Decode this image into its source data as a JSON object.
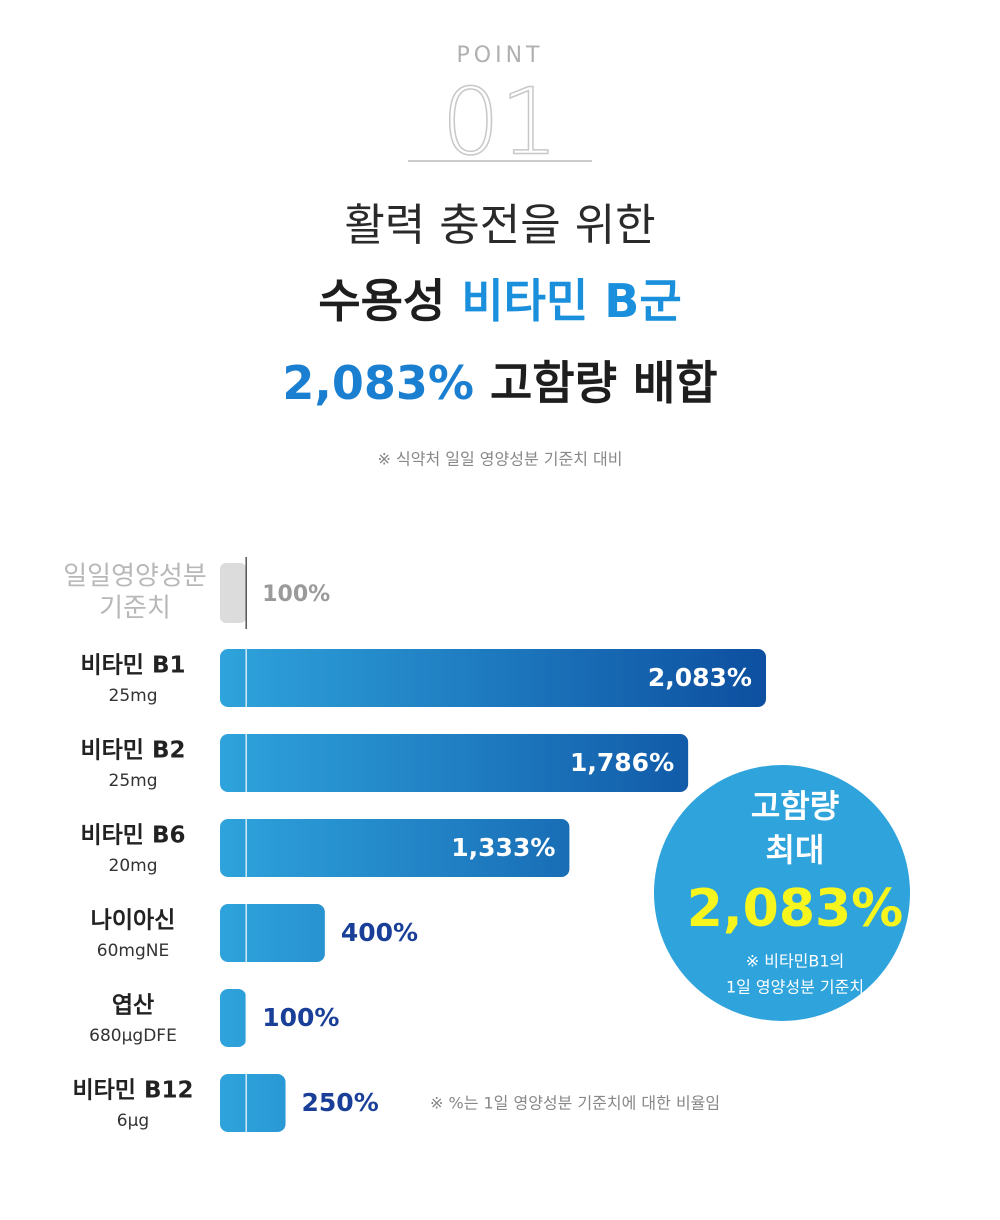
{
  "header": {
    "point": "POINT",
    "number": "01",
    "line1": "활력 충전을 위한",
    "line2a": "수용성 ",
    "line2b": "비타민 B군",
    "line3a": "2,083%",
    "line3b": " 고함량 배합",
    "note": "※ 식약처 일일 영양성분 기준치 대비"
  },
  "chart_data": {
    "type": "bar",
    "categories": [
      "비타민 B1",
      "비타민 B2",
      "비타민 B6",
      "나이아신",
      "엽산",
      "비타민 B12"
    ],
    "doses": [
      "25mg",
      "25mg",
      "20mg",
      "60mgNE",
      "680μgDFE",
      "6μg"
    ],
    "values": [
      2083,
      1786,
      1333,
      400,
      100,
      250
    ],
    "value_labels": [
      "2,083%",
      "1,786%",
      "1,333%",
      "400%",
      "100%",
      "250%"
    ],
    "colors": [
      "#2ea3dc",
      "#0d4fa0"
    ],
    "reference": {
      "label_lines": [
        "일일영양성분",
        "기준치"
      ],
      "value": 100,
      "value_label": "100%",
      "color": "#dcdcdc"
    },
    "footnote": "※ %는 1일 영양성분 기준치에 대한 비율임"
  },
  "callout": {
    "line1": "고함량",
    "line2": "최대",
    "value_label": "2,083%",
    "note1": "※ 비타민B1의",
    "note2": "1일 영양성분 기준치"
  }
}
